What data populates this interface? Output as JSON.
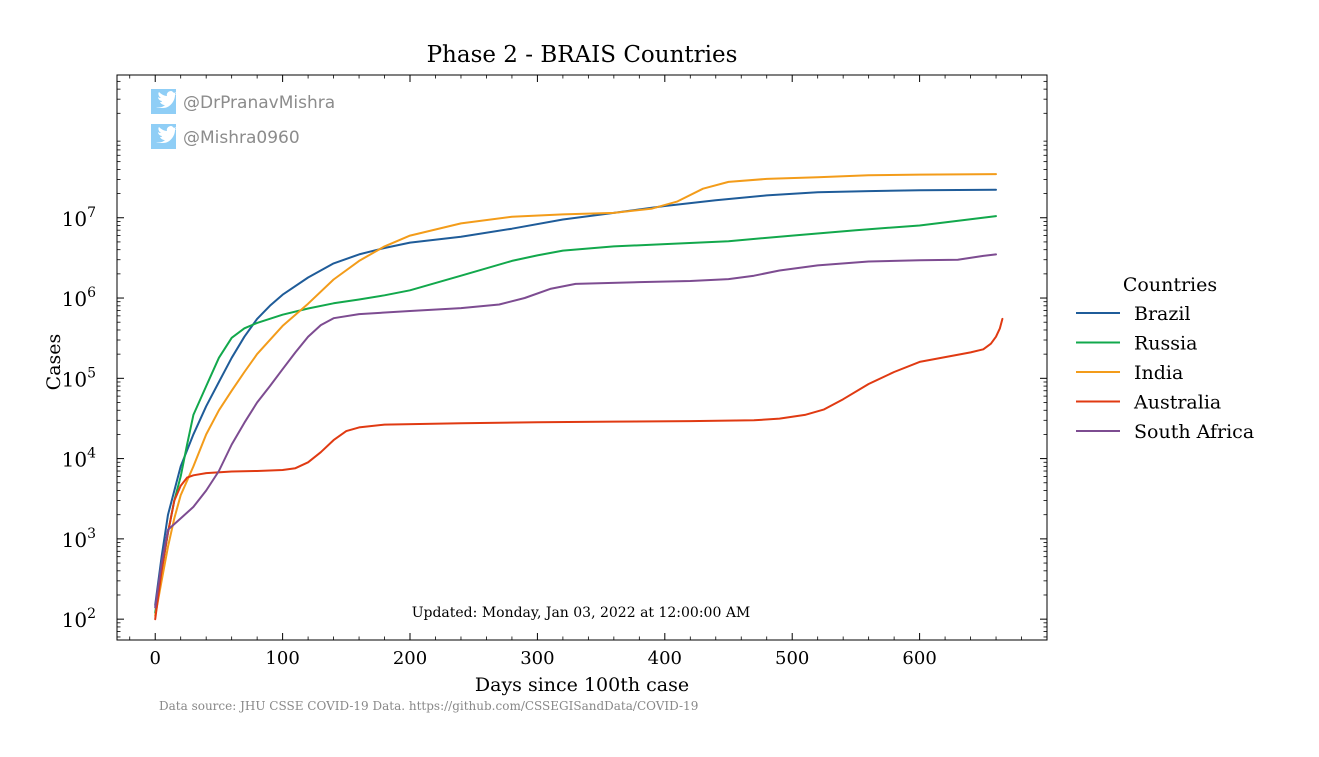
{
  "chart_data": {
    "type": "line",
    "title": "Phase 2 - BRAIS Countries",
    "xlabel": "Days since 100th case",
    "ylabel": "Cases",
    "xlim": [
      -30,
      700
    ],
    "ylim": [
      55,
      600000000
    ],
    "yscale": "log",
    "xticks": [
      0,
      100,
      200,
      300,
      400,
      500,
      600
    ],
    "xtick_labels": [
      "0",
      "100",
      "200",
      "300",
      "400",
      "500",
      "600"
    ],
    "yticks": [
      100,
      1000,
      10000,
      100000,
      1000000,
      10000000
    ],
    "ytick_labels": [
      {
        "base": "10",
        "exp": "2"
      },
      {
        "base": "10",
        "exp": "3"
      },
      {
        "base": "10",
        "exp": "4"
      },
      {
        "base": "10",
        "exp": "5"
      },
      {
        "base": "10",
        "exp": "6"
      },
      {
        "base": "10",
        "exp": "7"
      }
    ],
    "legend": {
      "title": "Countries",
      "placement": "outside-right"
    },
    "series": [
      {
        "name": "Brazil",
        "color": "#1f5c99",
        "points": [
          [
            0,
            150
          ],
          [
            5,
            600
          ],
          [
            10,
            2000
          ],
          [
            20,
            8000
          ],
          [
            30,
            20000
          ],
          [
            40,
            45000
          ],
          [
            50,
            90000
          ],
          [
            60,
            180000
          ],
          [
            70,
            330000
          ],
          [
            80,
            550000
          ],
          [
            90,
            800000
          ],
          [
            100,
            1100000
          ],
          [
            120,
            1800000
          ],
          [
            140,
            2700000
          ],
          [
            160,
            3500000
          ],
          [
            180,
            4200000
          ],
          [
            200,
            4900000
          ],
          [
            240,
            5800000
          ],
          [
            280,
            7300000
          ],
          [
            320,
            9500000
          ],
          [
            360,
            11500000
          ],
          [
            400,
            14000000
          ],
          [
            440,
            16500000
          ],
          [
            480,
            19000000
          ],
          [
            520,
            20800000
          ],
          [
            560,
            21500000
          ],
          [
            600,
            22000000
          ],
          [
            660,
            22300000
          ]
        ]
      },
      {
        "name": "Russia",
        "color": "#12a84c",
        "points": [
          [
            0,
            120
          ],
          [
            5,
            400
          ],
          [
            10,
            1200
          ],
          [
            15,
            3000
          ],
          [
            20,
            6000
          ],
          [
            25,
            15000
          ],
          [
            30,
            35000
          ],
          [
            40,
            80000
          ],
          [
            50,
            180000
          ],
          [
            60,
            320000
          ],
          [
            70,
            420000
          ],
          [
            80,
            490000
          ],
          [
            100,
            620000
          ],
          [
            120,
            740000
          ],
          [
            140,
            860000
          ],
          [
            160,
            960000
          ],
          [
            180,
            1080000
          ],
          [
            200,
            1250000
          ],
          [
            240,
            1900000
          ],
          [
            280,
            2900000
          ],
          [
            300,
            3400000
          ],
          [
            320,
            3900000
          ],
          [
            360,
            4400000
          ],
          [
            400,
            4700000
          ],
          [
            450,
            5100000
          ],
          [
            500,
            6000000
          ],
          [
            550,
            7000000
          ],
          [
            600,
            8000000
          ],
          [
            660,
            10500000
          ]
        ]
      },
      {
        "name": "India",
        "color": "#f39c1a",
        "points": [
          [
            0,
            110
          ],
          [
            5,
            300
          ],
          [
            10,
            800
          ],
          [
            15,
            1800
          ],
          [
            20,
            3500
          ],
          [
            30,
            8000
          ],
          [
            40,
            20000
          ],
          [
            50,
            40000
          ],
          [
            60,
            70000
          ],
          [
            70,
            120000
          ],
          [
            80,
            200000
          ],
          [
            100,
            450000
          ],
          [
            120,
            850000
          ],
          [
            140,
            1700000
          ],
          [
            160,
            2900000
          ],
          [
            180,
            4400000
          ],
          [
            200,
            6000000
          ],
          [
            240,
            8500000
          ],
          [
            280,
            10300000
          ],
          [
            320,
            11000000
          ],
          [
            360,
            11500000
          ],
          [
            390,
            13000000
          ],
          [
            410,
            16000000
          ],
          [
            430,
            23000000
          ],
          [
            450,
            28000000
          ],
          [
            480,
            30500000
          ],
          [
            520,
            32000000
          ],
          [
            560,
            33800000
          ],
          [
            600,
            34500000
          ],
          [
            660,
            35000000
          ]
        ]
      },
      {
        "name": "Australia",
        "color": "#e03a12",
        "points": [
          [
            0,
            100
          ],
          [
            5,
            400
          ],
          [
            10,
            1200
          ],
          [
            15,
            3000
          ],
          [
            20,
            4600
          ],
          [
            25,
            5800
          ],
          [
            30,
            6200
          ],
          [
            40,
            6600
          ],
          [
            60,
            6900
          ],
          [
            80,
            7000
          ],
          [
            100,
            7200
          ],
          [
            110,
            7600
          ],
          [
            120,
            9000
          ],
          [
            130,
            12000
          ],
          [
            140,
            17000
          ],
          [
            150,
            22000
          ],
          [
            160,
            24500
          ],
          [
            180,
            26500
          ],
          [
            240,
            27500
          ],
          [
            300,
            28300
          ],
          [
            360,
            28900
          ],
          [
            420,
            29300
          ],
          [
            470,
            30000
          ],
          [
            490,
            31500
          ],
          [
            510,
            35000
          ],
          [
            525,
            41000
          ],
          [
            540,
            55000
          ],
          [
            560,
            85000
          ],
          [
            580,
            120000
          ],
          [
            600,
            160000
          ],
          [
            640,
            210000
          ],
          [
            650,
            230000
          ],
          [
            656,
            270000
          ],
          [
            660,
            330000
          ],
          [
            663,
            420000
          ],
          [
            665,
            550000
          ]
        ]
      },
      {
        "name": "South Africa",
        "color": "#7d4c91",
        "points": [
          [
            0,
            140
          ],
          [
            5,
            500
          ],
          [
            10,
            1300
          ],
          [
            20,
            1800
          ],
          [
            30,
            2500
          ],
          [
            40,
            4000
          ],
          [
            50,
            7000
          ],
          [
            60,
            15000
          ],
          [
            70,
            28000
          ],
          [
            80,
            50000
          ],
          [
            90,
            80000
          ],
          [
            100,
            130000
          ],
          [
            110,
            210000
          ],
          [
            120,
            330000
          ],
          [
            130,
            460000
          ],
          [
            140,
            560000
          ],
          [
            160,
            630000
          ],
          [
            200,
            690000
          ],
          [
            240,
            750000
          ],
          [
            270,
            830000
          ],
          [
            290,
            1000000
          ],
          [
            310,
            1300000
          ],
          [
            330,
            1500000
          ],
          [
            380,
            1580000
          ],
          [
            420,
            1630000
          ],
          [
            450,
            1720000
          ],
          [
            470,
            1900000
          ],
          [
            490,
            2200000
          ],
          [
            520,
            2550000
          ],
          [
            560,
            2850000
          ],
          [
            600,
            2950000
          ],
          [
            630,
            3000000
          ],
          [
            650,
            3350000
          ],
          [
            660,
            3500000
          ]
        ]
      }
    ]
  },
  "watermarks": [
    {
      "icon": "twitter-icon",
      "text": "@DrPranavMishra"
    },
    {
      "icon": "twitter-icon",
      "text": "@Mishra0960"
    }
  ],
  "annotation": "Updated: Monday, Jan 03, 2022 at 12:00:00 AM",
  "source_note": "Data source: JHU CSSE COVID-19 Data. https://github.com/CSSEGISandData/COVID-19"
}
